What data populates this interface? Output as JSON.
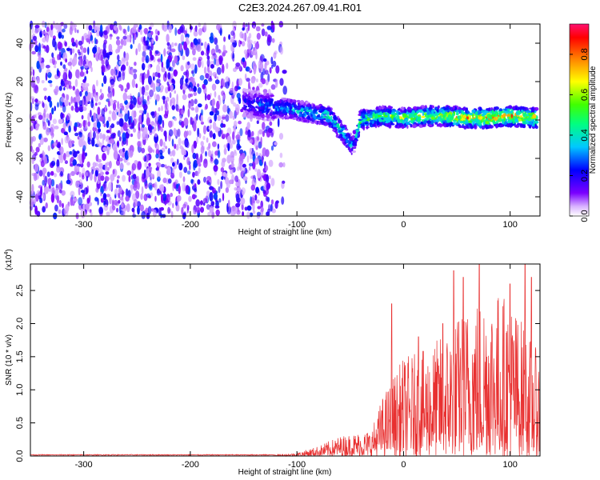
{
  "title": "C2E3.2024.267.09.41.R01",
  "chart_data": [
    {
      "type": "heatmap",
      "xlabel": "Height of straight line (km)",
      "ylabel": "Frequency (Hz)",
      "xlim": [
        -350,
        128
      ],
      "ylim": [
        -50,
        50
      ],
      "xticks": [
        -300,
        -200,
        -100,
        0,
        100
      ],
      "yticks": [
        -40,
        -20,
        0,
        20,
        40
      ],
      "noise_region_x": [
        -350,
        -120
      ],
      "ridge": {
        "x": [
          -150,
          -130,
          -110,
          -90,
          -70,
          -55,
          -48,
          -40,
          -20,
          0,
          20,
          40,
          60,
          80,
          100,
          125
        ],
        "frequency": [
          9,
          7,
          6,
          4,
          2,
          -8,
          -14,
          0,
          2,
          1,
          2,
          2,
          1,
          1,
          2,
          1
        ],
        "peak_amplitude": [
          0.25,
          0.35,
          0.4,
          0.45,
          0.5,
          0.45,
          0.4,
          0.55,
          0.6,
          0.65,
          0.7,
          0.75,
          0.8,
          0.85,
          0.85,
          0.75
        ]
      },
      "colorbar": {
        "label": "Normalized spectral amplitude",
        "ticks": [
          0.0,
          0.2,
          0.4,
          0.6,
          0.8
        ],
        "range": [
          0,
          0.95
        ],
        "colors": [
          "#ffffff",
          "#7a00ff",
          "#0000ff",
          "#00ffff",
          "#00ff00",
          "#ffff00",
          "#ff8000",
          "#ff0000",
          "#ff0066"
        ]
      }
    },
    {
      "type": "line",
      "xlabel": "Height of straight line (km)",
      "ylabel": "SNR (10 * v/v)",
      "y_multiplier_label": "(x10",
      "y_multiplier_exp": "4",
      "xlim": [
        -350,
        128
      ],
      "ylim": [
        0,
        2.9
      ],
      "xticks": [
        -300,
        -200,
        -100,
        0,
        100
      ],
      "yticks": [
        0.0,
        0.5,
        1.0,
        1.5,
        2.0,
        2.5
      ],
      "envelope": {
        "x": [
          -350,
          -120,
          -100,
          -80,
          -60,
          -45,
          -30,
          -20,
          0,
          20,
          40,
          60,
          80,
          100,
          110,
          128
        ],
        "y": [
          0.02,
          0.02,
          0.05,
          0.15,
          0.3,
          0.35,
          0.4,
          0.9,
          1.5,
          1.6,
          1.9,
          2.3,
          2.6,
          2.4,
          2.1,
          1.5
        ]
      },
      "peaks": [
        {
          "x": -11,
          "y": 2.3
        },
        {
          "x": 14,
          "y": 1.8
        },
        {
          "x": 37,
          "y": 2.0
        },
        {
          "x": 47,
          "y": 2.8
        },
        {
          "x": 56,
          "y": 2.7
        },
        {
          "x": 71,
          "y": 2.9
        },
        {
          "x": 100,
          "y": 2.6
        },
        {
          "x": 114,
          "y": 2.9
        },
        {
          "x": 120,
          "y": 2.7
        }
      ],
      "line_color": "#e83030"
    }
  ]
}
